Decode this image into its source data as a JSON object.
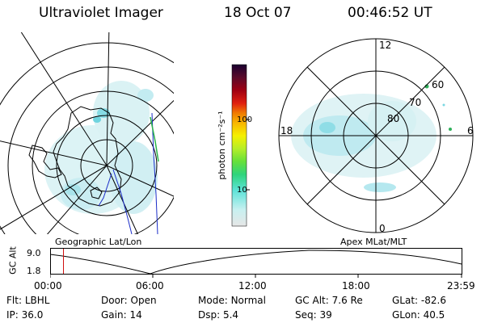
{
  "header": {
    "instrument": "Ultraviolet Imager",
    "date": "18 Oct 07",
    "time": "00:46:52 UT"
  },
  "colorbar": {
    "unit_label": "photon cm⁻²s⁻¹",
    "ticks": [
      "100",
      "10"
    ]
  },
  "polar_plot": {
    "mlt_labels": {
      "top": "12",
      "left": "18",
      "right": "6",
      "bottom": "0"
    },
    "lat_labels": [
      "60",
      "70",
      "80"
    ],
    "caption": "Apex MLat/MLT"
  },
  "geo_plot": {
    "caption": "Geographic Lat/Lon"
  },
  "altitude_plot": {
    "ylabel": "GC Alt",
    "y_ticks": [
      "9.0",
      "1.8"
    ],
    "x_ticks": [
      "00:00",
      "06:00",
      "12:00",
      "18:00",
      "23:59"
    ],
    "marker_time_hours": 0.78
  },
  "info": {
    "row1": [
      {
        "label": "Flt:",
        "value": "LBHL"
      },
      {
        "label": "Door:",
        "value": "Open"
      },
      {
        "label": "Mode:",
        "value": "Normal"
      },
      {
        "label": "GC Alt:",
        "value": "7.6 Re"
      },
      {
        "label": "GLat:",
        "value": "-82.6"
      }
    ],
    "row2": [
      {
        "label": "IP:",
        "value": "36.0"
      },
      {
        "label": "Gain:",
        "value": "14"
      },
      {
        "label": "Dsp:",
        "value": "5.4"
      },
      {
        "label": "Seq:",
        "value": "39"
      },
      {
        "label": "GLon:",
        "value": "40.5"
      }
    ]
  }
}
